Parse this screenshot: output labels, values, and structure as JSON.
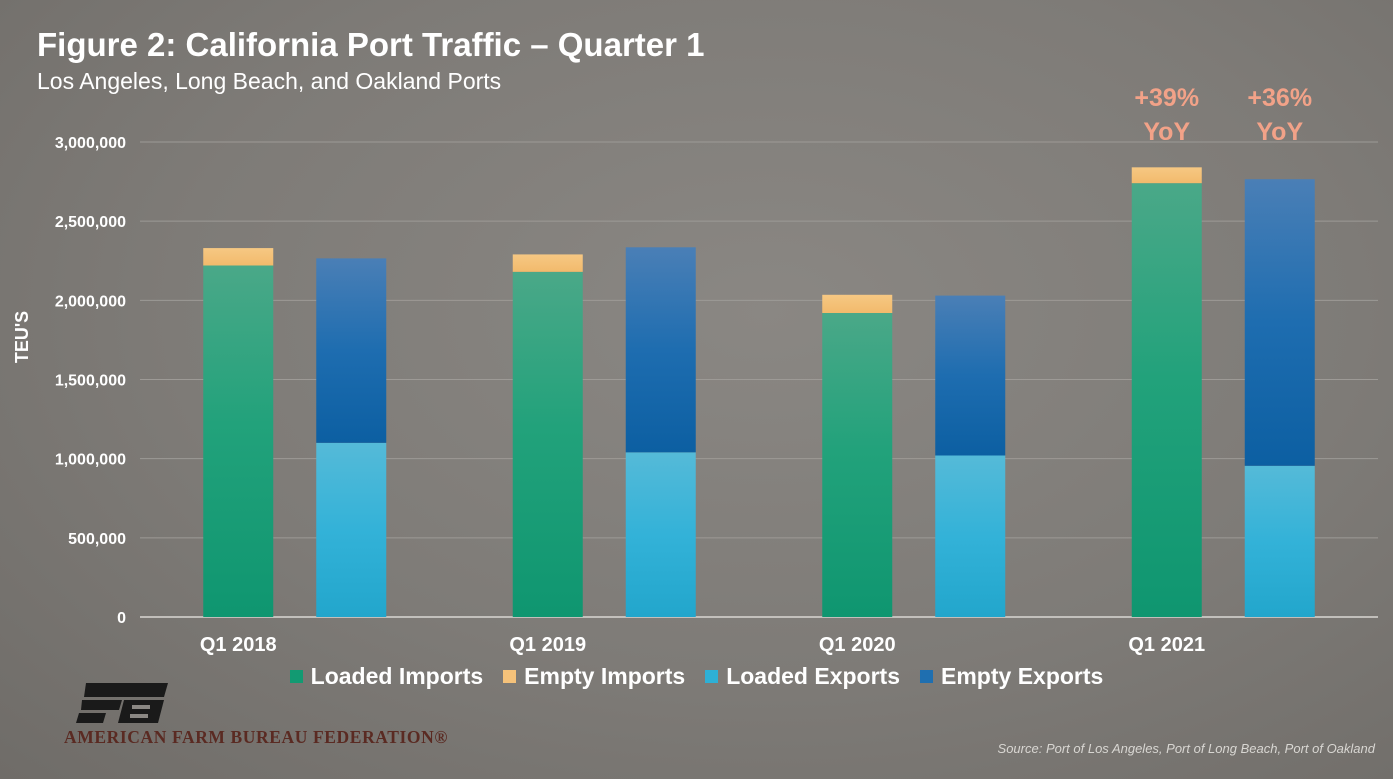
{
  "header": {
    "title": "Figure 2: California Port Traffic – Quarter 1",
    "subtitle": "Los Angeles, Long Beach, and Oakland Ports"
  },
  "colors": {
    "loaded_imports": "#129a72",
    "empty_imports": "#f5c27a",
    "loaded_exports": "#2eb0d6",
    "empty_exports": "#1f6fb0",
    "annotation": "#f2a288"
  },
  "chart_data": {
    "type": "bar",
    "stacked": true,
    "categories": [
      "Q1 2018",
      "Q1 2019",
      "Q1 2020",
      "Q1 2021"
    ],
    "ylabel": "TEU'S",
    "ylim": [
      0,
      3000000
    ],
    "yticks": [
      0,
      500000,
      1000000,
      1500000,
      2000000,
      2500000,
      3000000
    ],
    "ytick_labels": [
      "0",
      "500,000",
      "1,000,000",
      "1,500,000",
      "2,000,000",
      "2,500,000",
      "3,000,000"
    ],
    "grid": true,
    "legend_position": "bottom",
    "stacks": [
      {
        "name": "Imports",
        "series": [
          {
            "name": "Loaded Imports",
            "values": [
              2220000,
              2180000,
              1920000,
              2740000
            ]
          },
          {
            "name": "Empty Imports",
            "values": [
              110000,
              110000,
              115000,
              100000
            ]
          }
        ]
      },
      {
        "name": "Exports",
        "series": [
          {
            "name": "Loaded Exports",
            "values": [
              1100000,
              1040000,
              1020000,
              955000
            ]
          },
          {
            "name": "Empty Exports",
            "values": [
              1165000,
              1295000,
              1010000,
              1810000
            ]
          }
        ]
      }
    ],
    "annotations": [
      {
        "category": "Q1 2021",
        "stack": "Imports",
        "line1": "+39%",
        "line2": "YoY"
      },
      {
        "category": "Q1 2021",
        "stack": "Exports",
        "line1": "+36%",
        "line2": "YoY"
      }
    ]
  },
  "legend": {
    "items": [
      {
        "label": "Loaded Imports"
      },
      {
        "label": "Empty Imports"
      },
      {
        "label": "Loaded Exports"
      },
      {
        "label": "Empty Exports"
      }
    ]
  },
  "logo": {
    "name": "farm-bureau-logo",
    "text": "AMERICAN FARM BUREAU FEDERATION®"
  },
  "footer": {
    "source": "Source: Port of Los Angeles, Port of Long Beach, Port of Oakland"
  }
}
